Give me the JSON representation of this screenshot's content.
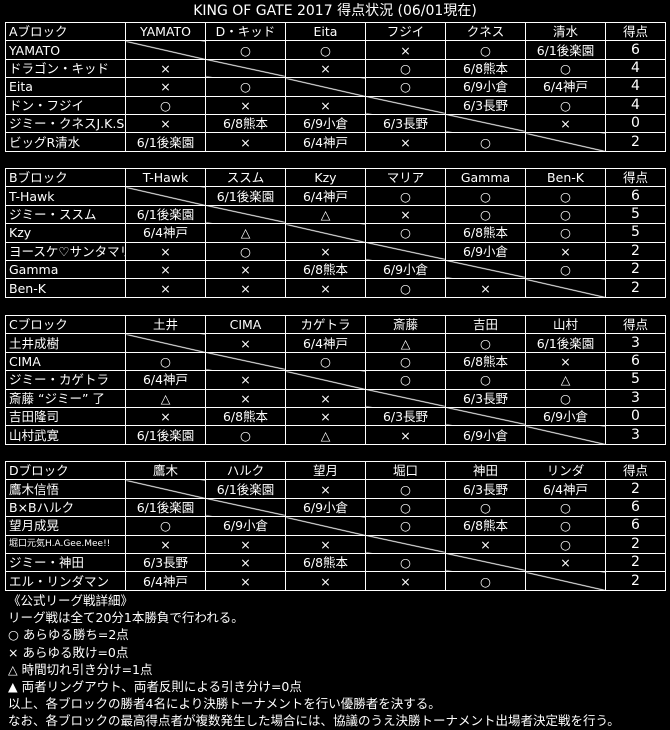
{
  "title": "KING OF GATE 2017 得点状況 (06/01現在)",
  "blocks": [
    {
      "header": [
        "Aブロック",
        "YAMATO",
        "D・キッド",
        "Eita",
        "フジイ",
        "クネス",
        "清水",
        "得点"
      ],
      "rows": [
        [
          "YAMATO",
          null,
          "○",
          "○",
          "×",
          "○",
          "6/1後楽園",
          "6"
        ],
        [
          "ドラゴン・キッド",
          "×",
          null,
          "×",
          "○",
          "6/8熊本",
          "○",
          "4"
        ],
        [
          "Eita",
          "×",
          "○",
          null,
          "○",
          "6/9小倉",
          "6/4神戸",
          "4"
        ],
        [
          "ドン・フジイ",
          "○",
          "×",
          "×",
          null,
          "6/3長野",
          "○",
          "4"
        ],
        [
          "ジミー・クネスJ.K.S.",
          "×",
          "6/8熊本",
          "6/9小倉",
          "6/3長野",
          null,
          "×",
          "0"
        ],
        [
          "ビッグR清水",
          "6/1後楽園",
          "×",
          "6/4神戸",
          "×",
          "○",
          null,
          "2"
        ]
      ]
    },
    {
      "header": [
        "Bブロック",
        "T-Hawk",
        "ススム",
        "Kzy",
        "マリア",
        "Gamma",
        "Ben-K",
        "得点"
      ],
      "rows": [
        [
          "T-Hawk",
          null,
          "6/1後楽園",
          "6/4神戸",
          "○",
          "○",
          "○",
          "6"
        ],
        [
          "ジミー・ススム",
          "6/1後楽園",
          null,
          "△",
          "×",
          "○",
          "○",
          "5"
        ],
        [
          "Kzy",
          "6/4神戸",
          "△",
          null,
          "○",
          "6/8熊本",
          "○",
          "5"
        ],
        [
          "ヨースケ♡サンタマリア",
          "×",
          "○",
          "×",
          null,
          "6/9小倉",
          "×",
          "2"
        ],
        [
          "Gamma",
          "×",
          "×",
          "6/8熊本",
          "6/9小倉",
          null,
          "○",
          "2"
        ],
        [
          "Ben-K",
          "×",
          "×",
          "×",
          "○",
          "×",
          null,
          "2"
        ]
      ]
    },
    {
      "header": [
        "Cブロック",
        "土井",
        "CIMA",
        "カゲトラ",
        "斎藤",
        "吉田",
        "山村",
        "得点"
      ],
      "rows": [
        [
          "土井成樹",
          null,
          "×",
          "6/4神戸",
          "△",
          "○",
          "6/1後楽園",
          "3"
        ],
        [
          "CIMA",
          "○",
          null,
          "○",
          "○",
          "6/8熊本",
          "×",
          "6"
        ],
        [
          "ジミー・カゲトラ",
          "6/4神戸",
          "×",
          null,
          "○",
          "○",
          "△",
          "5"
        ],
        [
          "斎藤 “ジミー” 了",
          "△",
          "×",
          "×",
          null,
          "6/3長野",
          "○",
          "3"
        ],
        [
          "吉田隆司",
          "×",
          "6/8熊本",
          "×",
          "6/3長野",
          null,
          "6/9小倉",
          "0"
        ],
        [
          "山村武寛",
          "6/1後楽園",
          "○",
          "△",
          "×",
          "6/9小倉",
          null,
          "3"
        ]
      ]
    },
    {
      "header": [
        "Dブロック",
        "鷹木",
        "ハルク",
        "望月",
        "堀口",
        "神田",
        "リンダ",
        "得点"
      ],
      "rows": [
        [
          "鷹木信悟",
          null,
          "6/1後楽園",
          "×",
          "○",
          "6/3長野",
          "6/4神戸",
          "2"
        ],
        [
          "B×Bハルク",
          "6/1後楽園",
          null,
          "6/9小倉",
          "○",
          "○",
          "○",
          "6"
        ],
        [
          "望月成晃",
          "○",
          "6/9小倉",
          null,
          "○",
          "6/8熊本",
          "○",
          "6"
        ],
        [
          "堀口元気H.A.Gee.Mee!!",
          "×",
          "×",
          "×",
          null,
          "×",
          "○",
          "2"
        ],
        [
          "ジミー・神田",
          "6/3長野",
          "×",
          "6/8熊本",
          "○",
          null,
          "×",
          "2"
        ],
        [
          "エル・リンダマン",
          "6/4神戸",
          "×",
          "×",
          "×",
          "○",
          null,
          "2"
        ]
      ]
    }
  ],
  "notes": [
    "《公式リーグ戦詳細》",
    "リーグ戦は全て20分1本勝負で行われる。",
    "○ あらゆる勝ち=2点",
    "× あらゆる敗け=0点",
    "△ 時間切れ引き分け=1点",
    "▲ 両者リングアウト、両者反則による引き分け=0点",
    "以上、各ブロックの勝者4名により決勝トーナメントを行い優勝者を決する。",
    "なお、各ブロックの最高得点者が複数発生した場合には、協議のうえ決勝トーナメント出場者決定戦を行う。"
  ]
}
